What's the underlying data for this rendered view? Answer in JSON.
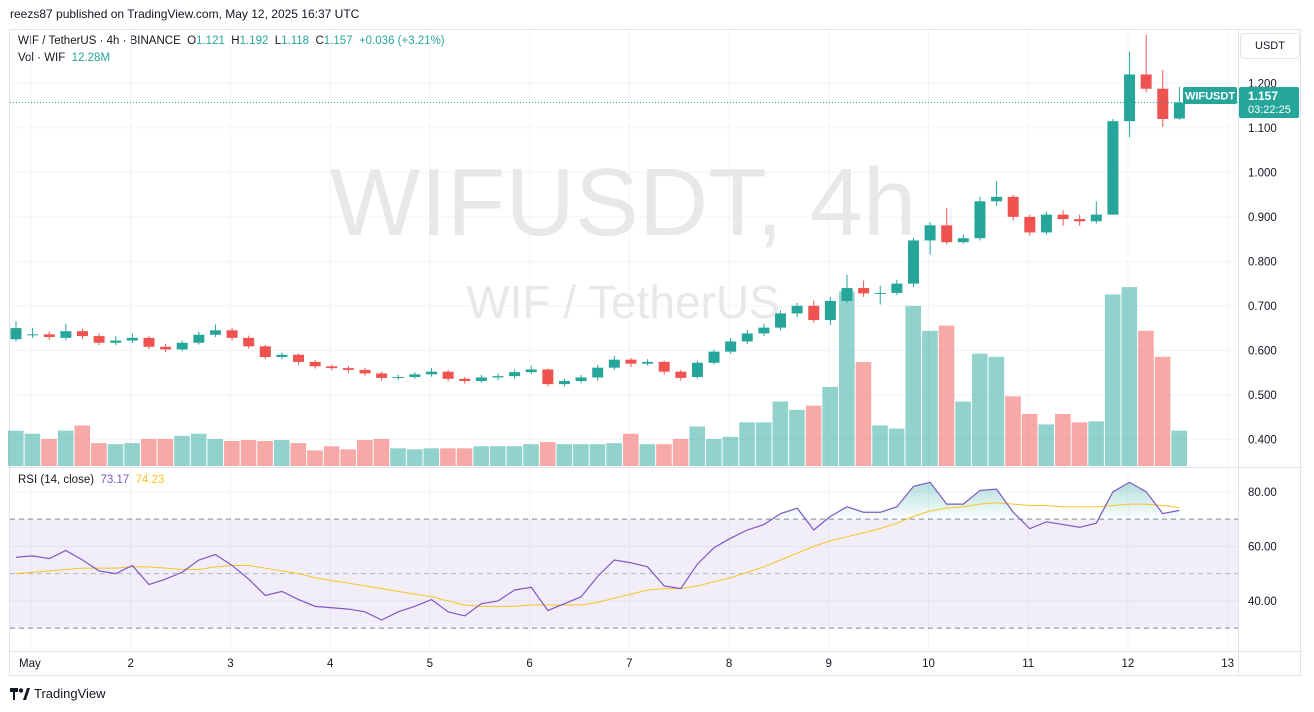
{
  "header": {
    "published": "reezs87 published on TradingView.com, May 12, 2025 16:37 UTC"
  },
  "legend": {
    "symbol": "WIF / TetherUS · 4h · BINANCE",
    "o_label": "O",
    "o": "1.121",
    "h_label": "H",
    "h": "1.192",
    "l_label": "L",
    "l": "1.118",
    "c_label": "C",
    "c": "1.157",
    "change": "+0.036 (+3.21%)",
    "vol_label": "Vol · WIF",
    "vol_value": "12.28M"
  },
  "watermark": {
    "line1": "WIFUSDT, 4h",
    "line2": "WIF / TetherUS"
  },
  "currency_button": "USDT",
  "price_tag": {
    "symbol": "WIFUSDT",
    "price": "1.157",
    "countdown": "03:22:25"
  },
  "rsi_legend": {
    "label": "RSI (14, close)",
    "rsi": "73.17",
    "ma": "74.23"
  },
  "brand": "TradingView",
  "chart_data": {
    "type": "candlestick",
    "price_axis": {
      "ticks": [
        "0.400",
        "0.500",
        "0.600",
        "0.700",
        "0.800",
        "0.900",
        "1.000",
        "1.100",
        "1.200"
      ],
      "range": [
        0.34,
        1.32
      ]
    },
    "rsi_axis": {
      "ticks": [
        "40.00",
        "60.00",
        "80.00"
      ],
      "bands": [
        30,
        50,
        70
      ],
      "range": [
        22,
        88
      ]
    },
    "x_labels": [
      {
        "label": "May",
        "i": 0
      },
      {
        "label": "2",
        "i": 6
      },
      {
        "label": "3",
        "i": 12
      },
      {
        "label": "4",
        "i": 18
      },
      {
        "label": "5",
        "i": 24
      },
      {
        "label": "6",
        "i": 30
      },
      {
        "label": "7",
        "i": 36
      },
      {
        "label": "8",
        "i": 42
      },
      {
        "label": "9",
        "i": 48
      },
      {
        "label": "10",
        "i": 54
      },
      {
        "label": "11",
        "i": 60
      },
      {
        "label": "12",
        "i": 66
      },
      {
        "label": "13",
        "i": 72
      }
    ],
    "colors": {
      "up": "#26a69a",
      "down": "#ef5350",
      "rsi": "#7e57c2",
      "rsi_ma": "#f7c325"
    },
    "candles": [
      [
        0.625,
        0.65,
        0.665,
        0.62
      ],
      [
        0.636,
        0.636,
        0.65,
        0.628
      ],
      [
        0.636,
        0.63,
        0.642,
        0.624
      ],
      [
        0.628,
        0.643,
        0.66,
        0.622
      ],
      [
        0.643,
        0.632,
        0.648,
        0.626
      ],
      [
        0.632,
        0.617,
        0.638,
        0.612
      ],
      [
        0.617,
        0.622,
        0.632,
        0.612
      ],
      [
        0.622,
        0.628,
        0.638,
        0.616
      ],
      [
        0.628,
        0.608,
        0.632,
        0.603
      ],
      [
        0.608,
        0.602,
        0.615,
        0.596
      ],
      [
        0.602,
        0.617,
        0.622,
        0.598
      ],
      [
        0.617,
        0.635,
        0.642,
        0.613
      ],
      [
        0.635,
        0.645,
        0.658,
        0.63
      ],
      [
        0.645,
        0.628,
        0.65,
        0.622
      ],
      [
        0.628,
        0.609,
        0.633,
        0.604
      ],
      [
        0.609,
        0.585,
        0.612,
        0.58
      ],
      [
        0.585,
        0.59,
        0.595,
        0.58
      ],
      [
        0.59,
        0.574,
        0.593,
        0.568
      ],
      [
        0.574,
        0.564,
        0.578,
        0.559
      ],
      [
        0.564,
        0.56,
        0.568,
        0.555
      ],
      [
        0.56,
        0.556,
        0.565,
        0.55
      ],
      [
        0.556,
        0.548,
        0.561,
        0.543
      ],
      [
        0.548,
        0.538,
        0.552,
        0.532
      ],
      [
        0.538,
        0.54,
        0.545,
        0.534
      ],
      [
        0.54,
        0.546,
        0.551,
        0.536
      ],
      [
        0.546,
        0.552,
        0.56,
        0.541
      ],
      [
        0.552,
        0.536,
        0.556,
        0.53
      ],
      [
        0.536,
        0.531,
        0.54,
        0.525
      ],
      [
        0.531,
        0.539,
        0.545,
        0.527
      ],
      [
        0.539,
        0.542,
        0.548,
        0.533
      ],
      [
        0.542,
        0.551,
        0.557,
        0.536
      ],
      [
        0.551,
        0.557,
        0.566,
        0.546
      ],
      [
        0.557,
        0.524,
        0.559,
        0.519
      ],
      [
        0.524,
        0.531,
        0.536,
        0.519
      ],
      [
        0.531,
        0.539,
        0.545,
        0.526
      ],
      [
        0.539,
        0.561,
        0.567,
        0.532
      ],
      [
        0.561,
        0.579,
        0.588,
        0.556
      ],
      [
        0.579,
        0.57,
        0.583,
        0.563
      ],
      [
        0.57,
        0.574,
        0.58,
        0.566
      ],
      [
        0.574,
        0.552,
        0.577,
        0.546
      ],
      [
        0.552,
        0.538,
        0.556,
        0.532
      ],
      [
        0.54,
        0.572,
        0.577,
        0.536
      ],
      [
        0.572,
        0.597,
        0.602,
        0.568
      ],
      [
        0.597,
        0.62,
        0.628,
        0.592
      ],
      [
        0.62,
        0.638,
        0.646,
        0.614
      ],
      [
        0.638,
        0.651,
        0.66,
        0.632
      ],
      [
        0.651,
        0.683,
        0.69,
        0.645
      ],
      [
        0.683,
        0.7,
        0.707,
        0.675
      ],
      [
        0.7,
        0.668,
        0.712,
        0.662
      ],
      [
        0.668,
        0.711,
        0.72,
        0.657
      ],
      [
        0.711,
        0.74,
        0.77,
        0.706
      ],
      [
        0.74,
        0.728,
        0.757,
        0.72
      ],
      [
        0.728,
        0.729,
        0.745,
        0.703
      ],
      [
        0.729,
        0.75,
        0.758,
        0.724
      ],
      [
        0.75,
        0.847,
        0.853,
        0.742
      ],
      [
        0.847,
        0.881,
        0.888,
        0.815
      ],
      [
        0.881,
        0.843,
        0.92,
        0.838
      ],
      [
        0.843,
        0.852,
        0.86,
        0.84
      ],
      [
        0.852,
        0.935,
        0.945,
        0.847
      ],
      [
        0.935,
        0.945,
        0.98,
        0.925
      ],
      [
        0.945,
        0.9,
        0.95,
        0.892
      ],
      [
        0.9,
        0.865,
        0.905,
        0.858
      ],
      [
        0.865,
        0.905,
        0.912,
        0.86
      ],
      [
        0.905,
        0.895,
        0.915,
        0.88
      ],
      [
        0.895,
        0.89,
        0.905,
        0.88
      ],
      [
        0.89,
        0.905,
        0.935,
        0.885
      ],
      [
        0.905,
        1.115,
        1.12,
        0.905
      ],
      [
        1.115,
        1.22,
        1.272,
        1.079
      ],
      [
        1.22,
        1.188,
        1.309,
        1.18
      ],
      [
        1.188,
        1.12,
        1.23,
        1.102
      ],
      [
        1.121,
        1.157,
        1.192,
        1.118
      ]
    ],
    "volume": [
      34,
      31,
      26,
      34,
      39,
      22,
      21,
      22,
      26,
      26,
      29,
      31,
      26,
      24,
      25,
      24,
      25,
      22,
      15,
      19,
      16,
      25,
      26,
      17,
      16,
      17,
      17,
      17,
      19,
      19,
      19,
      21,
      23,
      21,
      21,
      21,
      22,
      31,
      21,
      21,
      26,
      38,
      26,
      28,
      42,
      42,
      62,
      54,
      58,
      76,
      168,
      100,
      39,
      36,
      154,
      130,
      135,
      62,
      108,
      105,
      67,
      50,
      40,
      50,
      42,
      43,
      165,
      172,
      130,
      105,
      34
    ],
    "volume_scale": {
      "max": 250
    },
    "rsi": [
      56,
      56.5,
      55.5,
      58.5,
      55,
      51,
      50,
      53,
      46,
      48,
      50.5,
      55,
      57,
      53,
      48,
      42,
      43.5,
      40.5,
      38,
      37.5,
      37,
      36,
      33,
      36,
      38,
      40.5,
      36,
      34.5,
      39,
      40,
      44,
      45,
      36.5,
      39,
      41.5,
      49,
      55,
      54,
      52.5,
      45.5,
      44.5,
      53.5,
      59.5,
      63,
      66,
      68,
      72,
      74,
      66,
      71,
      74.5,
      72.5,
      72.5,
      74.5,
      82,
      83.5,
      75.5,
      75.5,
      80.5,
      81,
      72.5,
      66.5,
      69,
      68,
      67,
      68.5,
      80,
      83.5,
      80,
      72,
      73.2
    ],
    "rsi_ma": [
      50,
      50.5,
      51,
      51.5,
      52,
      52,
      52,
      52.5,
      52.5,
      52,
      51.5,
      51.5,
      52.5,
      53,
      53,
      52,
      51,
      50,
      48.5,
      47.5,
      46.5,
      45.5,
      44.5,
      43.5,
      42.5,
      41.5,
      40,
      38.5,
      38,
      38,
      38,
      38.5,
      38.5,
      38.5,
      38.5,
      39.5,
      41,
      42.5,
      44,
      44.5,
      44.5,
      45.5,
      47,
      48.5,
      50.5,
      52.5,
      55,
      57.5,
      60,
      62,
      63.5,
      65,
      66.5,
      68.5,
      71,
      73,
      74,
      74.5,
      75.5,
      76,
      75.5,
      75,
      75,
      74.5,
      74.5,
      74.5,
      75,
      75.5,
      75.5,
      75,
      74.2
    ]
  }
}
